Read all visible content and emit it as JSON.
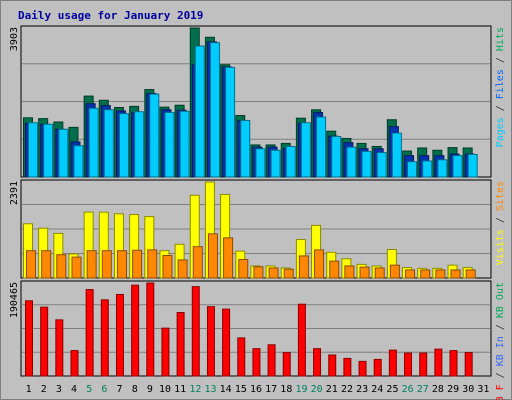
{
  "chart_data": {
    "type": "bar",
    "title": "Daily usage for January 2019",
    "categories": [
      "1",
      "2",
      "3",
      "4",
      "5",
      "6",
      "7",
      "8",
      "9",
      "10",
      "11",
      "12",
      "13",
      "14",
      "15",
      "16",
      "17",
      "18",
      "19",
      "20",
      "21",
      "22",
      "23",
      "24",
      "25",
      "26",
      "27",
      "28",
      "29",
      "30",
      "31"
    ],
    "weekend_days": [
      "5",
      "6",
      "12",
      "13",
      "19",
      "20",
      "26",
      "27"
    ],
    "panels": [
      {
        "id": "top",
        "max_label": "3903",
        "ymax": 3903,
        "side_labels": [
          {
            "text": "Pages",
            "color": "#00ccff"
          },
          {
            "text": " / ",
            "color": "#333333"
          },
          {
            "text": "Files",
            "color": "#0066ff"
          },
          {
            "text": " / ",
            "color": "#333333"
          },
          {
            "text": "Hits",
            "color": "#00aa55"
          }
        ],
        "series": [
          {
            "name": "Hits",
            "color": "#006e4b",
            "values": [
              1550,
              1530,
              1440,
              1300,
              2120,
              2010,
              1820,
              1850,
              2290,
              1830,
              1880,
              3903,
              3660,
              2940,
              1610,
              840,
              840,
              880,
              1540,
              1760,
              1200,
              1010,
              880,
              800,
              1500,
              680,
              760,
              700,
              770,
              760
            ]
          },
          {
            "name": "Files",
            "color": "#0033aa",
            "values": [
              1400,
              1380,
              1250,
              920,
              1920,
              1870,
              1730,
              1680,
              2190,
              1760,
              1750,
              2940,
              3540,
              2880,
              1480,
              780,
              780,
              750,
              1410,
              1690,
              1070,
              900,
              740,
              740,
              1320,
              560,
              560,
              560,
              600,
              600
            ]
          },
          {
            "name": "Pages",
            "color": "#00ccff",
            "values": [
              1420,
              1380,
              1250,
              820,
              1800,
              1760,
              1660,
              1710,
              2170,
              1690,
              1720,
              3430,
              3520,
              2870,
              1480,
              740,
              700,
              800,
              1420,
              1570,
              1060,
              780,
              670,
              640,
              1150,
              400,
              420,
              450,
              560,
              590
            ]
          }
        ]
      },
      {
        "id": "middle",
        "max_label": "2391",
        "ymax": 2391,
        "side_labels": [
          {
            "text": "Visits",
            "color": "#ffff00"
          },
          {
            "text": " / ",
            "color": "#333333"
          },
          {
            "text": "Sites",
            "color": "#ff8800"
          }
        ],
        "series": [
          {
            "name": "Visits",
            "color": "#ffff00",
            "values": [
              1350,
              1240,
              1110,
              600,
              1640,
              1640,
              1600,
              1580,
              1530,
              680,
              840,
              2060,
              2391,
              2080,
              670,
              300,
              300,
              250,
              960,
              1310,
              640,
              480,
              340,
              300,
              710,
              260,
              240,
              240,
              320,
              260
            ]
          },
          {
            "name": "Sites",
            "color": "#ff8800",
            "values": [
              680,
              680,
              580,
              520,
              680,
              680,
              680,
              690,
              700,
              560,
              450,
              780,
              1100,
              1000,
              460,
              280,
              250,
              220,
              550,
              700,
              420,
              300,
              270,
              250,
              320,
              200,
              200,
              200,
              200,
              200
            ]
          }
        ]
      },
      {
        "id": "bottom",
        "max_label": "190465",
        "ymax": 190465,
        "side_labels": [
          {
            "text": "KB F",
            "color": "#ff0000"
          },
          {
            "text": " / ",
            "color": "#333333"
          },
          {
            "text": "KB In",
            "color": "#3366ff"
          },
          {
            "text": " / ",
            "color": "#333333"
          },
          {
            "text": "KB Out",
            "color": "#00aa55"
          }
        ],
        "series": [
          {
            "name": "KB F",
            "color": "#ff0000",
            "values": [
              154000,
              141000,
              115000,
              52000,
              177000,
              156000,
              167000,
              186000,
              190465,
              98000,
              130000,
              183000,
              142000,
              137000,
              78000,
              56000,
              64000,
              48000,
              147000,
              56000,
              43000,
              36000,
              30000,
              34000,
              53000,
              47000,
              47000,
              55000,
              52000,
              48000
            ]
          }
        ]
      }
    ]
  }
}
